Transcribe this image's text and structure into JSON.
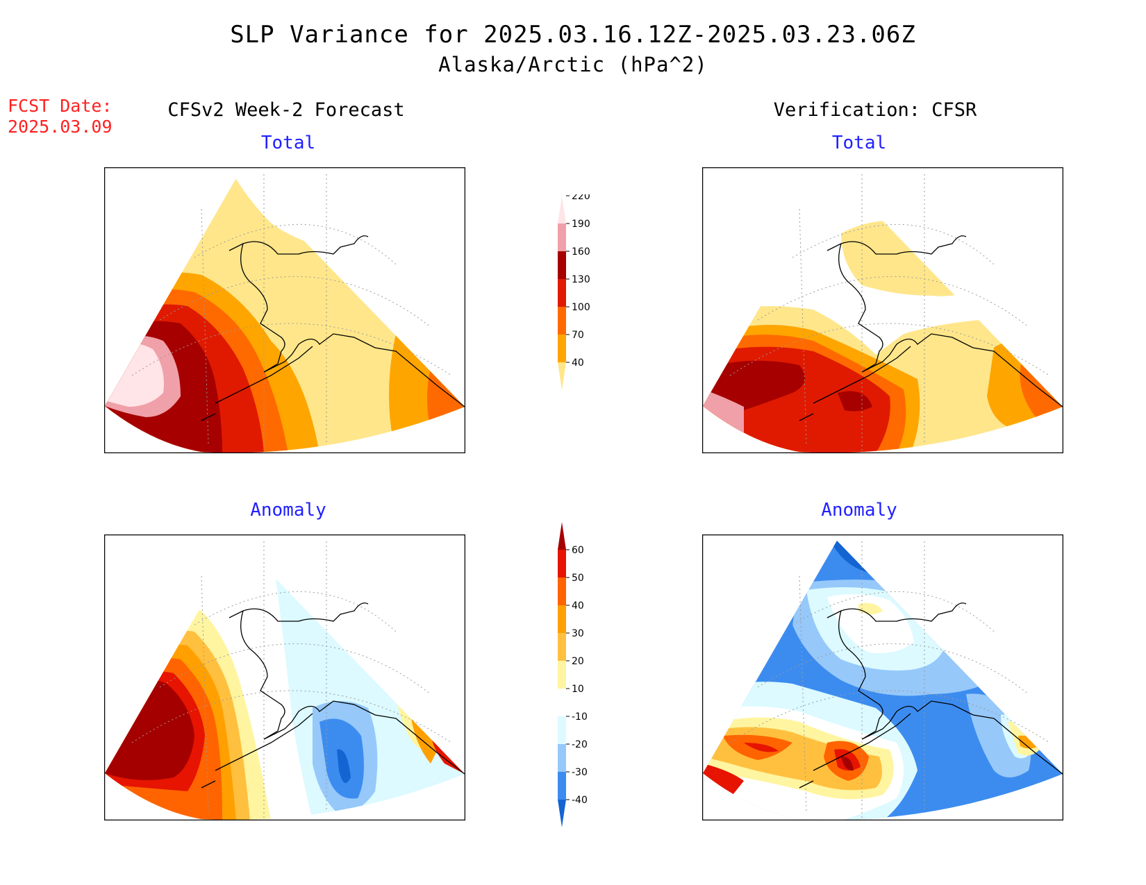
{
  "title": "SLP Variance for 2025.03.16.12Z-2025.03.23.06Z",
  "subtitle": "Alaska/Arctic (hPa^2)",
  "forecast_date": {
    "label": "FCST Date:",
    "value": "2025.03.09"
  },
  "columns": {
    "left": "CFSv2 Week-2 Forecast",
    "right": "Verification: CFSR"
  },
  "panels": {
    "top_left": "Total",
    "top_right": "Total",
    "bottom_left": "Anomaly",
    "bottom_right": "Anomaly"
  },
  "colorbars": {
    "total": {
      "labels": [
        "40",
        "70",
        "100",
        "130",
        "160",
        "190",
        "220"
      ],
      "colors": [
        "#ffe68a",
        "#ffa500",
        "#ff6a00",
        "#e01a00",
        "#a60000",
        "#f0a0a8",
        "#ffe4e8"
      ]
    },
    "anomaly": {
      "labels": [
        "-40",
        "-30",
        "-20",
        "-10",
        "10",
        "20",
        "30",
        "40",
        "50",
        "60"
      ],
      "colors": [
        "#1464d2",
        "#3c8cf0",
        "#96c8fa",
        "#dcfaff",
        "#ffffff",
        "#fff5a0",
        "#ffc040",
        "#ffa000",
        "#ff6400",
        "#e61400",
        "#a50000"
      ]
    }
  },
  "legend_colors": {
    "land_outline": "#000000",
    "graticule": "#9a9a9a"
  }
}
